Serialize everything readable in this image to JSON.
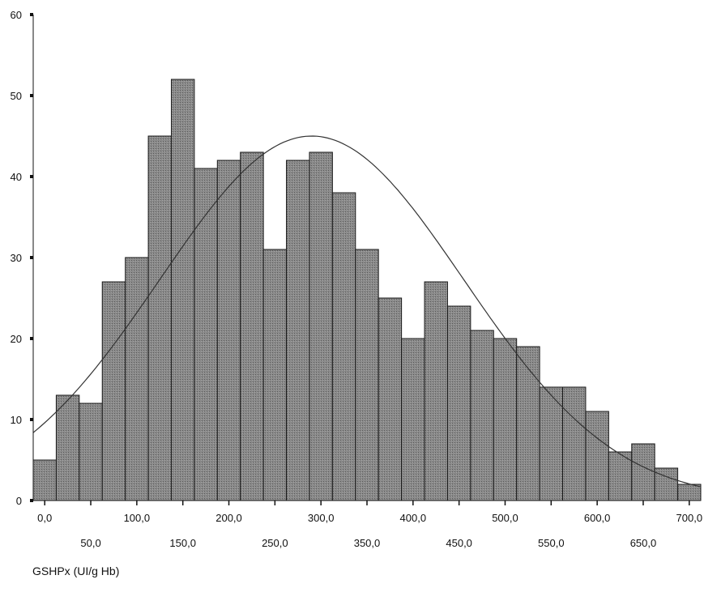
{
  "chart_data": {
    "type": "bar",
    "title": "",
    "xlabel": "GSHPx (UI/g Hb)",
    "ylabel": "",
    "ylim": [
      0,
      60
    ],
    "xlim": [
      -12.5,
      712.5
    ],
    "bin_width": 25,
    "bin_start": -12.5,
    "yticks": [
      "0",
      "10",
      "20",
      "30",
      "40",
      "50",
      "60"
    ],
    "xticks_row1": [
      "0,0",
      "100,0",
      "200,0",
      "300,0",
      "400,0",
      "500,0",
      "600,0",
      "700,0"
    ],
    "xticks_row2": [
      "50,0",
      "150,0",
      "250,0",
      "350,0",
      "450,0",
      "550,0",
      "650,0"
    ],
    "values": [
      5,
      13,
      12,
      27,
      30,
      45,
      52,
      41,
      42,
      43,
      31,
      42,
      43,
      38,
      31,
      25,
      20,
      27,
      24,
      21,
      20,
      19,
      14,
      14,
      11,
      6,
      7,
      4,
      2
    ],
    "normal_curve": {
      "mean": 290,
      "peak": 45,
      "sd": 165
    },
    "grid": false,
    "bar_color": "#7a7a7a"
  }
}
